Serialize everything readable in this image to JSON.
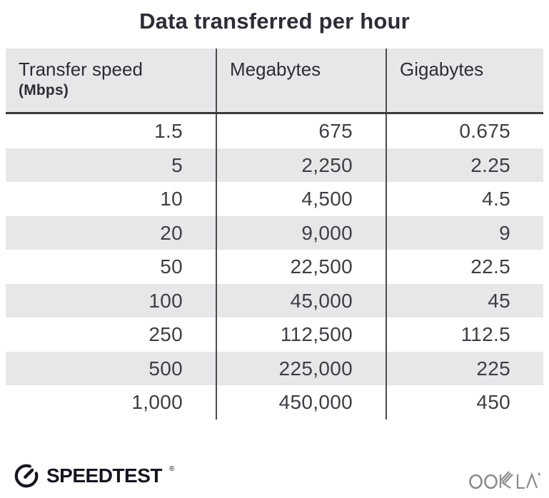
{
  "title": "Data transferred per hour",
  "table": {
    "columns": [
      {
        "label": "Transfer speed",
        "sublabel": "(Mbps)"
      },
      {
        "label": "Megabytes"
      },
      {
        "label": "Gigabytes"
      }
    ],
    "rows": [
      [
        "1.5",
        "675",
        "0.675"
      ],
      [
        "5",
        "2,250",
        "2.25"
      ],
      [
        "10",
        "4,500",
        "4.5"
      ],
      [
        "20",
        "9,000",
        "9"
      ],
      [
        "50",
        "22,500",
        "22.5"
      ],
      [
        "100",
        "45,000",
        "45"
      ],
      [
        "250",
        "112,500",
        "112.5"
      ],
      [
        "500",
        "225,000",
        "225"
      ],
      [
        "1,000",
        "450,000",
        "450"
      ]
    ]
  },
  "footer": {
    "speedtest_label": "SPEEDTEST",
    "speedtest_mark": "®",
    "ookla_label": "OOKLA"
  },
  "colors": {
    "header_bg": "#e7e7ea",
    "stripe_bg": "#e7e7ea",
    "divider": "#4b4b4b",
    "header_border": "#3a3a3a",
    "title_text": "#2c2d35",
    "body_text": "#3e3e44",
    "speedtest_brand": "#16161f",
    "ookla_gray": "#8b8b8e"
  },
  "chart_data": {
    "type": "table",
    "title": "Data transferred per hour",
    "columns": [
      "Transfer speed (Mbps)",
      "Megabytes",
      "Gigabytes"
    ],
    "rows": [
      [
        1.5,
        675,
        0.675
      ],
      [
        5,
        2250,
        2.25
      ],
      [
        10,
        4500,
        4.5
      ],
      [
        20,
        9000,
        9
      ],
      [
        50,
        22500,
        22.5
      ],
      [
        100,
        45000,
        45
      ],
      [
        250,
        112500,
        112.5
      ],
      [
        500,
        225000,
        225
      ],
      [
        1000,
        450000,
        450
      ]
    ]
  }
}
